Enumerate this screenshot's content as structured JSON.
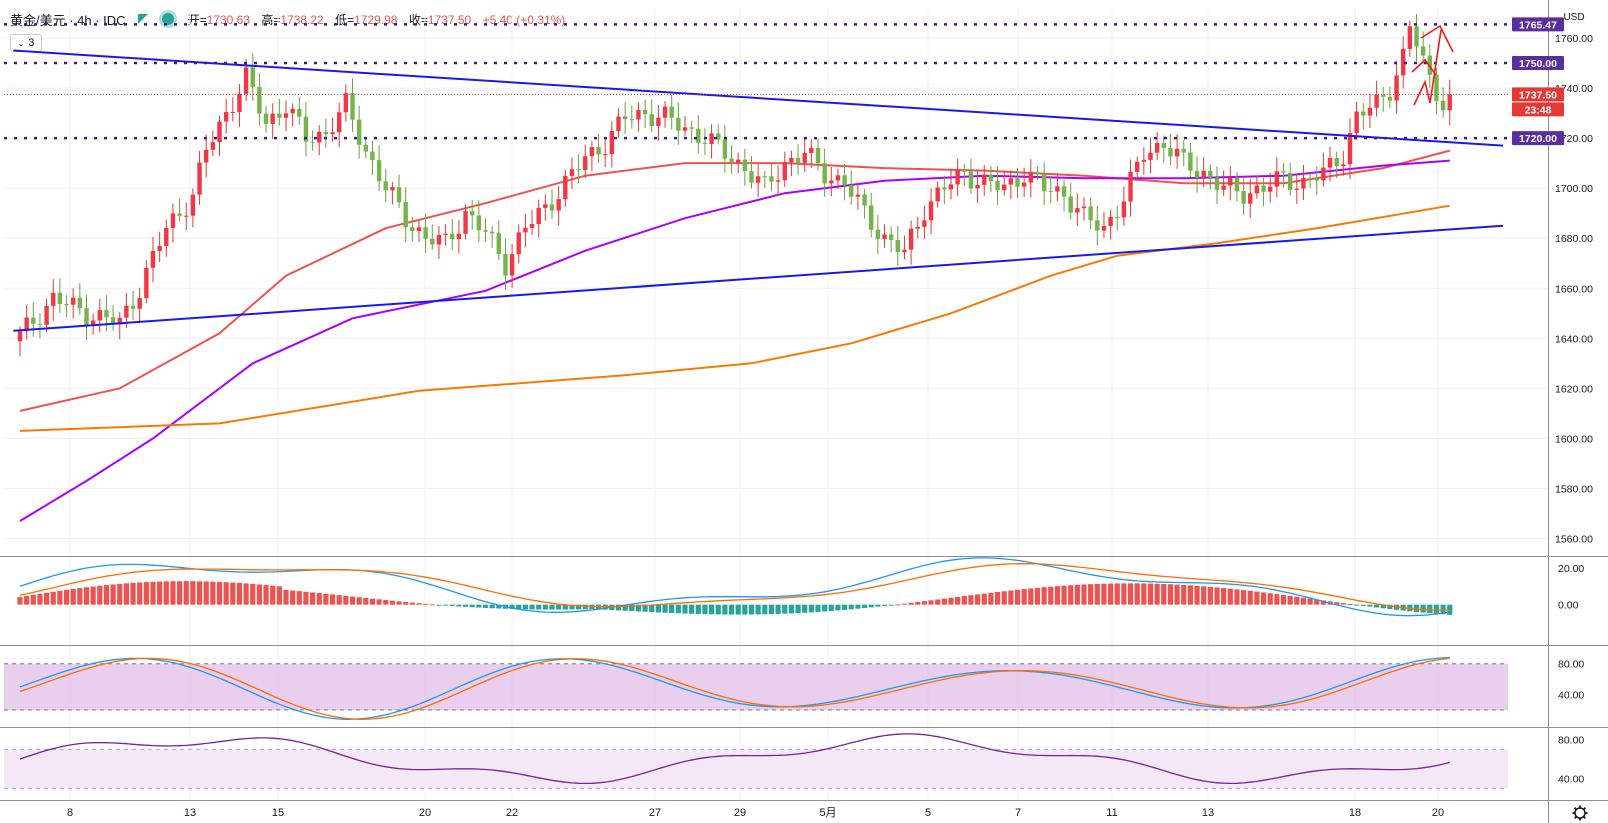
{
  "header": {
    "symbol": "黄金/美元 · 4h · IDC",
    "open_label": "开=",
    "open": "1730.63",
    "high_label": "高=",
    "high": "1738.22",
    "low_label": "低=",
    "low": "1729.98",
    "close_label": "收=",
    "close": "1737.50",
    "change": "+5.40 (+0.31%)",
    "indicator_count": "3"
  },
  "chart_data": {
    "type": "candlestick",
    "currency": "USD",
    "price_axis": {
      "ticks": [
        1760,
        1740,
        1720,
        1700,
        1680,
        1660,
        1640,
        1620,
        1600,
        1580,
        1560
      ],
      "tick_labels": [
        "1760.00",
        "1740.00",
        "1720.00",
        "1700.00",
        "1680.00",
        "1660.00",
        "1640.00",
        "1620.00",
        "1600.00",
        "1580.00",
        "1560.00"
      ],
      "range": [
        1553,
        1772
      ]
    },
    "time_axis": {
      "labels": [
        "8",
        "13",
        "15",
        "20",
        "22",
        "27",
        "29",
        "5月",
        "5",
        "7",
        "11",
        "13",
        "18",
        "20"
      ]
    },
    "price_labels": [
      {
        "text": "1765.47",
        "value": 1765.47,
        "color": "#5b2ea0"
      },
      {
        "text": "1750.00",
        "value": 1750.0,
        "color": "#5b2ea0"
      },
      {
        "text": "1737.50",
        "value": 1737.5,
        "color": "#e53935"
      },
      {
        "text": "23:48",
        "value": 1731.5,
        "color": "#e53935"
      },
      {
        "text": "1720.00",
        "value": 1720.0,
        "color": "#5b2ea0"
      }
    ],
    "horizontal_levels": [
      1765.47,
      1750.0,
      1720.0
    ],
    "candles_close_path": [
      [
        0,
        1641
      ],
      [
        5,
        1656
      ],
      [
        10,
        1650
      ],
      [
        15,
        1646
      ],
      [
        18,
        1660
      ],
      [
        22,
        1684
      ],
      [
        26,
        1697
      ],
      [
        28,
        1715
      ],
      [
        31,
        1730
      ],
      [
        34,
        1744
      ],
      [
        37,
        1726
      ],
      [
        40,
        1733
      ],
      [
        43,
        1720
      ],
      [
        46,
        1722
      ],
      [
        49,
        1733
      ],
      [
        52,
        1715
      ],
      [
        55,
        1700
      ],
      [
        58,
        1688
      ],
      [
        61,
        1680
      ],
      [
        64,
        1678
      ],
      [
        67,
        1690
      ],
      [
        70,
        1682
      ],
      [
        73,
        1670
      ],
      [
        76,
        1684
      ],
      [
        79,
        1692
      ],
      [
        82,
        1702
      ],
      [
        85,
        1712
      ],
      [
        88,
        1718
      ],
      [
        91,
        1728
      ],
      [
        94,
        1730
      ],
      [
        97,
        1728
      ],
      [
        100,
        1724
      ],
      [
        103,
        1720
      ],
      [
        106,
        1714
      ],
      [
        109,
        1708
      ],
      [
        112,
        1700
      ],
      [
        115,
        1710
      ],
      [
        118,
        1714
      ],
      [
        121,
        1706
      ],
      [
        124,
        1702
      ],
      [
        127,
        1690
      ],
      [
        130,
        1680
      ],
      [
        133,
        1674
      ],
      [
        136,
        1692
      ],
      [
        139,
        1700
      ],
      [
        142,
        1706
      ],
      [
        145,
        1702
      ],
      [
        148,
        1700
      ],
      [
        151,
        1706
      ],
      [
        154,
        1700
      ],
      [
        157,
        1698
      ],
      [
        160,
        1688
      ],
      [
        163,
        1684
      ],
      [
        166,
        1696
      ],
      [
        169,
        1714
      ],
      [
        172,
        1718
      ],
      [
        175,
        1710
      ],
      [
        178,
        1706
      ],
      [
        181,
        1700
      ],
      [
        184,
        1698
      ],
      [
        187,
        1700
      ],
      [
        190,
        1704
      ],
      [
        193,
        1702
      ],
      [
        196,
        1706
      ],
      [
        199,
        1714
      ],
      [
        201,
        1728
      ],
      [
        204,
        1734
      ],
      [
        206,
        1740
      ],
      [
        208,
        1752
      ],
      [
        209,
        1764
      ],
      [
        210,
        1758
      ],
      [
        212,
        1744
      ],
      [
        214,
        1734
      ],
      [
        215,
        1737.5
      ]
    ],
    "trend_lines": [
      {
        "from": [
          -1,
          1755
        ],
        "to": [
          223,
          1717
        ]
      },
      {
        "from": [
          -1,
          1643
        ],
        "to": [
          223,
          1685
        ]
      }
    ],
    "moving_averages": [
      {
        "color": "#ef5350",
        "points": [
          [
            0,
            1611
          ],
          [
            15,
            1620
          ],
          [
            30,
            1642
          ],
          [
            40,
            1665
          ],
          [
            55,
            1684
          ],
          [
            70,
            1694
          ],
          [
            85,
            1705
          ],
          [
            100,
            1710
          ],
          [
            115,
            1710
          ],
          [
            130,
            1708
          ],
          [
            145,
            1707
          ],
          [
            160,
            1705
          ],
          [
            175,
            1702
          ],
          [
            190,
            1702
          ],
          [
            205,
            1708
          ],
          [
            215,
            1715
          ]
        ]
      },
      {
        "color": "#aa00ff",
        "points": [
          [
            0,
            1567
          ],
          [
            10,
            1583
          ],
          [
            20,
            1600
          ],
          [
            35,
            1630
          ],
          [
            50,
            1648
          ],
          [
            70,
            1659
          ],
          [
            85,
            1675
          ],
          [
            100,
            1688
          ],
          [
            115,
            1698
          ],
          [
            130,
            1703
          ],
          [
            145,
            1705
          ],
          [
            160,
            1704
          ],
          [
            175,
            1704
          ],
          [
            190,
            1705
          ],
          [
            205,
            1709
          ],
          [
            215,
            1711
          ]
        ]
      },
      {
        "color": "#f57c00",
        "points": [
          [
            0,
            1603
          ],
          [
            30,
            1606
          ],
          [
            60,
            1619
          ],
          [
            90,
            1625
          ],
          [
            110,
            1630
          ],
          [
            125,
            1638
          ],
          [
            140,
            1650
          ],
          [
            155,
            1665
          ],
          [
            165,
            1673
          ],
          [
            180,
            1678
          ],
          [
            195,
            1684
          ],
          [
            215,
            1693
          ]
        ]
      }
    ],
    "macd": {
      "axis_ticks": [
        "20.00",
        "0.00"
      ],
      "range": [
        -22,
        26
      ]
    },
    "stoch": {
      "axis_ticks": [
        "80.00",
        "40.00"
      ],
      "band": [
        20,
        80
      ],
      "range": [
        -2,
        103
      ]
    },
    "rsi": {
      "axis_ticks": [
        "80.00",
        "40.00"
      ],
      "band": [
        30,
        70
      ],
      "range": [
        18,
        92
      ]
    }
  }
}
